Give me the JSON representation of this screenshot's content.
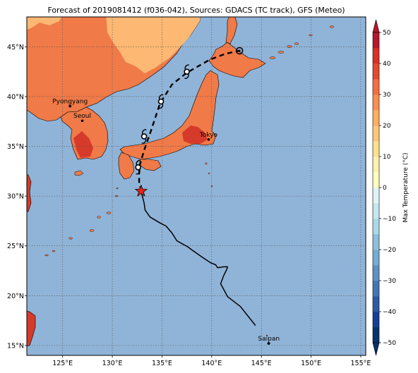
{
  "title": "Forecast of 2019081412 (f036-042), Sources: GDACS (TC track), GFS (Meteo)",
  "map": {
    "lon_range": [
      121.4,
      155.5
    ],
    "lat_range": [
      14,
      48
    ],
    "lon_ticks": [
      {
        "value": 125,
        "label": "125°E"
      },
      {
        "value": 130,
        "label": "130°E"
      },
      {
        "value": 135,
        "label": "135°E"
      },
      {
        "value": 140,
        "label": "140°E"
      },
      {
        "value": 145,
        "label": "145°E"
      },
      {
        "value": 150,
        "label": "150°E"
      },
      {
        "value": 155,
        "label": "155°E"
      }
    ],
    "lat_ticks": [
      {
        "value": 15,
        "label": "15°N"
      },
      {
        "value": 20,
        "label": "20°N"
      },
      {
        "value": 25,
        "label": "25°N"
      },
      {
        "value": 30,
        "label": "30°N"
      },
      {
        "value": 35,
        "label": "35°N"
      },
      {
        "value": 40,
        "label": "40°N"
      },
      {
        "value": 45,
        "label": "45°N"
      }
    ],
    "gridlines": true,
    "colors": {
      "ocean": "#90b4d8",
      "warm": "#f07a48",
      "mild": "#fdb873",
      "hot": "#d63a2a",
      "coast": "#000000",
      "grid": "#555555"
    },
    "cities": [
      {
        "name": "Pyongyang",
        "lon": 125.75,
        "lat": 39.03
      },
      {
        "name": "Seoul",
        "lon": 126.98,
        "lat": 37.57
      },
      {
        "name": "Tokyo",
        "lon": 139.69,
        "lat": 35.69
      },
      {
        "name": "Saipan",
        "lon": 145.75,
        "lat": 15.2
      }
    ],
    "observed_track": [
      [
        144.4,
        17.0
      ],
      [
        142.9,
        18.9
      ],
      [
        141.6,
        19.9
      ],
      [
        140.9,
        21.2
      ],
      [
        141.2,
        22.0
      ],
      [
        141.5,
        22.6
      ],
      [
        141.6,
        22.9
      ],
      [
        141.2,
        22.9
      ],
      [
        140.6,
        22.8
      ],
      [
        140.4,
        23.1
      ],
      [
        139.9,
        23.3
      ],
      [
        139.0,
        23.9
      ],
      [
        138.0,
        24.6
      ],
      [
        137.6,
        24.9
      ],
      [
        136.5,
        25.5
      ],
      [
        136.0,
        26.3
      ],
      [
        135.4,
        27.0
      ],
      [
        134.8,
        27.3
      ],
      [
        133.8,
        27.9
      ],
      [
        133.3,
        28.6
      ],
      [
        133.2,
        29.3
      ],
      [
        132.9,
        30.5
      ]
    ],
    "forecast_track": [
      [
        132.9,
        30.5
      ],
      [
        132.7,
        31.4
      ],
      [
        132.7,
        32.9
      ],
      [
        133.2,
        34.6
      ],
      [
        133.9,
        36.6
      ],
      [
        134.8,
        39.3
      ],
      [
        136.0,
        41.2
      ],
      [
        137.5,
        42.4
      ],
      [
        139.8,
        43.7
      ],
      [
        141.4,
        44.3
      ],
      [
        142.8,
        44.6
      ]
    ],
    "current_position": {
      "lon": 132.9,
      "lat": 30.5
    },
    "forecast_markers": [
      {
        "lon": 132.6,
        "lat": 32.9
      },
      {
        "lon": 133.2,
        "lat": 36.0
      },
      {
        "lon": 134.9,
        "lat": 39.5
      },
      {
        "lon": 137.5,
        "lat": 42.5
      },
      {
        "lon": 142.8,
        "lat": 44.6
      }
    ]
  },
  "colorbar": {
    "label": "Max Temperature (°C)",
    "min": -50,
    "max": 50,
    "step": 5,
    "ticks": [
      50,
      40,
      30,
      20,
      10,
      0,
      -10,
      -20,
      -30,
      -40,
      -50
    ],
    "colors": [
      "#08306b",
      "#1a3d96",
      "#2f5aa6",
      "#4575b4",
      "#5f92c3",
      "#74add1",
      "#91bfdb",
      "#abd9e9",
      "#c6e6f0",
      "#e0f3f8",
      "#ffffbf",
      "#fff0b0",
      "#fee090",
      "#fdc77a",
      "#fdae61",
      "#f98e52",
      "#f46d43",
      "#e34a33",
      "#d73027",
      "#b6162d"
    ]
  }
}
